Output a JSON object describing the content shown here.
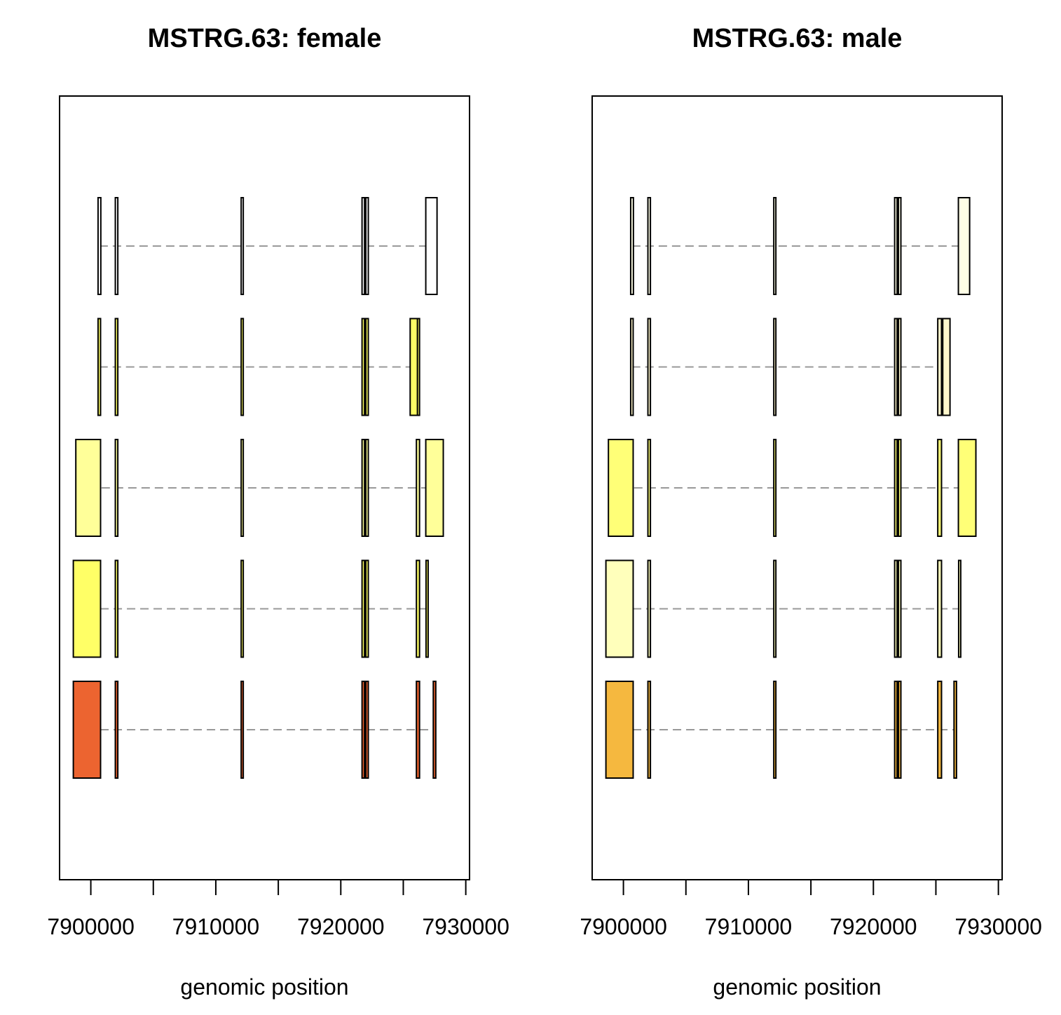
{
  "chart_data": [
    {
      "type": "gene-structure",
      "title": "MSTRG.63: female",
      "xlabel": "genomic position",
      "ylabel": "",
      "xlim": [
        7897500,
        7930300
      ],
      "x_ticks": [
        7900000,
        7905000,
        7910000,
        7915000,
        7920000,
        7925000,
        7930000
      ],
      "x_tick_labels": [
        "7900000",
        "7910000",
        "7920000",
        "7930000"
      ],
      "x_tick_label_values": [
        7900000,
        7910000,
        7920000,
        7930000
      ],
      "grid": false,
      "intron_color": "#999999",
      "transcripts": [
        {
          "exons": [
            {
              "start": 7900580,
              "end": 7900800,
              "fill": "#FFFFFF"
            },
            {
              "start": 7901960,
              "end": 7902160,
              "fill": "#FFFFFF"
            },
            {
              "start": 7912030,
              "end": 7912130,
              "fill": "#FFFFFF"
            },
            {
              "start": 7921700,
              "end": 7921900,
              "fill": "#FFFFFF"
            },
            {
              "start": 7922000,
              "end": 7922200,
              "fill": "#FFFFFF"
            },
            {
              "start": 7926800,
              "end": 7927700,
              "fill": "#FFFFFF"
            }
          ]
        },
        {
          "exons": [
            {
              "start": 7900580,
              "end": 7900780,
              "fill": "#FFFF66"
            },
            {
              "start": 7901960,
              "end": 7902160,
              "fill": "#FFFF66"
            },
            {
              "start": 7912030,
              "end": 7912130,
              "fill": "#FFFF66"
            },
            {
              "start": 7921700,
              "end": 7921900,
              "fill": "#FFFF66"
            },
            {
              "start": 7922000,
              "end": 7922200,
              "fill": "#FFFF66"
            },
            {
              "start": 7926050,
              "end": 7926300,
              "fill": "#FFFF66"
            },
            {
              "start": 7925150,
              "end": 7926450,
              "fill": "#FFFF66",
              "hidden": true
            },
            {
              "start": 7925550,
              "end": 7926130,
              "fill": "#FFFF66",
              "overlay": true
            }
          ]
        },
        {
          "exons": [
            {
              "start": 7898800,
              "end": 7900780,
              "fill": "#FFFF99"
            },
            {
              "start": 7901960,
              "end": 7902160,
              "fill": "#FFFF99"
            },
            {
              "start": 7912030,
              "end": 7912130,
              "fill": "#FFFF99"
            },
            {
              "start": 7921700,
              "end": 7921900,
              "fill": "#FFFF99"
            },
            {
              "start": 7922000,
              "end": 7922200,
              "fill": "#FFFF99"
            },
            {
              "start": 7926050,
              "end": 7926300,
              "fill": "#FFFF99"
            },
            {
              "start": 7926800,
              "end": 7928200,
              "fill": "#FFFF99"
            }
          ]
        },
        {
          "exons": [
            {
              "start": 7898600,
              "end": 7900780,
              "fill": "#FFFF66"
            },
            {
              "start": 7901960,
              "end": 7902160,
              "fill": "#FFFF66"
            },
            {
              "start": 7912030,
              "end": 7912130,
              "fill": "#FFFF66"
            },
            {
              "start": 7921700,
              "end": 7921900,
              "fill": "#FFFF66"
            },
            {
              "start": 7922000,
              "end": 7922200,
              "fill": "#FFFF66"
            },
            {
              "start": 7926050,
              "end": 7926300,
              "fill": "#FFFF66"
            },
            {
              "start": 7926820,
              "end": 7926920,
              "fill": "#FFFF66"
            }
          ]
        },
        {
          "exons": [
            {
              "start": 7898600,
              "end": 7900780,
              "fill": "#EC6430"
            },
            {
              "start": 7901960,
              "end": 7902160,
              "fill": "#EC6430"
            },
            {
              "start": 7912030,
              "end": 7912130,
              "fill": "#EC6430"
            },
            {
              "start": 7921700,
              "end": 7921900,
              "fill": "#EC6430"
            },
            {
              "start": 7922000,
              "end": 7922200,
              "fill": "#EC6430"
            },
            {
              "start": 7926050,
              "end": 7926300,
              "fill": "#EC6430"
            },
            {
              "start": 7927400,
              "end": 7927600,
              "fill": "#EC6430"
            }
          ]
        }
      ]
    },
    {
      "type": "gene-structure",
      "title": "MSTRG.63: male",
      "xlabel": "genomic position",
      "ylabel": "",
      "xlim": [
        7897500,
        7930300
      ],
      "x_ticks": [
        7900000,
        7905000,
        7910000,
        7915000,
        7920000,
        7925000,
        7930000
      ],
      "x_tick_labels": [
        "7900000",
        "7910000",
        "7920000",
        "7930000"
      ],
      "x_tick_label_values": [
        7900000,
        7910000,
        7920000,
        7930000
      ],
      "grid": false,
      "intron_color": "#999999",
      "transcripts": [
        {
          "exons": [
            {
              "start": 7900580,
              "end": 7900800,
              "fill": "#FFFFE6"
            },
            {
              "start": 7901960,
              "end": 7902160,
              "fill": "#FFFFE6"
            },
            {
              "start": 7912030,
              "end": 7912130,
              "fill": "#FFFFE6"
            },
            {
              "start": 7921700,
              "end": 7921900,
              "fill": "#FFFFE6"
            },
            {
              "start": 7922000,
              "end": 7922200,
              "fill": "#FFFFE6"
            },
            {
              "start": 7926800,
              "end": 7927700,
              "fill": "#FFFFE6"
            }
          ]
        },
        {
          "exons": [
            {
              "start": 7900580,
              "end": 7900780,
              "fill": "#FFF7CC"
            },
            {
              "start": 7901960,
              "end": 7902160,
              "fill": "#FFF7CC"
            },
            {
              "start": 7912030,
              "end": 7912130,
              "fill": "#FFF7CC"
            },
            {
              "start": 7921700,
              "end": 7921900,
              "fill": "#FFF7CC"
            },
            {
              "start": 7922000,
              "end": 7922200,
              "fill": "#FFF7CC"
            },
            {
              "start": 7925150,
              "end": 7925450,
              "fill": "#FFF7CC"
            },
            {
              "start": 7925550,
              "end": 7926130,
              "fill": "#FFF7CC"
            }
          ]
        },
        {
          "exons": [
            {
              "start": 7898800,
              "end": 7900780,
              "fill": "#FFFF77"
            },
            {
              "start": 7901960,
              "end": 7902160,
              "fill": "#FFFF77"
            },
            {
              "start": 7912030,
              "end": 7912130,
              "fill": "#FFFF77"
            },
            {
              "start": 7921700,
              "end": 7921900,
              "fill": "#FFFF77"
            },
            {
              "start": 7922000,
              "end": 7922200,
              "fill": "#FFFF77"
            },
            {
              "start": 7925150,
              "end": 7925450,
              "fill": "#FFFF77"
            },
            {
              "start": 7926800,
              "end": 7928200,
              "fill": "#FFFF77"
            }
          ]
        },
        {
          "exons": [
            {
              "start": 7898600,
              "end": 7900780,
              "fill": "#FFFFBB"
            },
            {
              "start": 7901960,
              "end": 7902160,
              "fill": "#FFFFBB"
            },
            {
              "start": 7912030,
              "end": 7912130,
              "fill": "#FFFFBB"
            },
            {
              "start": 7921700,
              "end": 7921900,
              "fill": "#FFFFBB"
            },
            {
              "start": 7922000,
              "end": 7922200,
              "fill": "#FFFFBB"
            },
            {
              "start": 7925150,
              "end": 7925450,
              "fill": "#FFFFBB"
            },
            {
              "start": 7926820,
              "end": 7926920,
              "fill": "#FFFFBB"
            }
          ]
        },
        {
          "exons": [
            {
              "start": 7898600,
              "end": 7900780,
              "fill": "#F5B83F"
            },
            {
              "start": 7901960,
              "end": 7902160,
              "fill": "#F5B83F"
            },
            {
              "start": 7912030,
              "end": 7912130,
              "fill": "#F5B83F"
            },
            {
              "start": 7921700,
              "end": 7921900,
              "fill": "#F5B83F"
            },
            {
              "start": 7922000,
              "end": 7922200,
              "fill": "#F5B83F"
            },
            {
              "start": 7925150,
              "end": 7925450,
              "fill": "#F5B83F"
            },
            {
              "start": 7926450,
              "end": 7926650,
              "fill": "#F5B83F"
            }
          ]
        }
      ]
    }
  ]
}
